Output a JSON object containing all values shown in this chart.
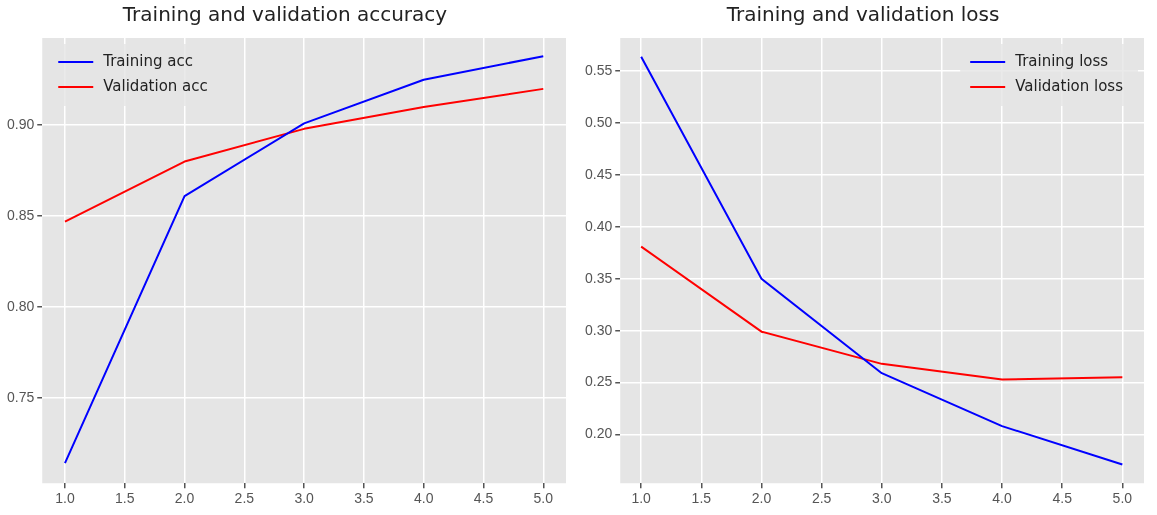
{
  "chart_data": [
    {
      "type": "line",
      "title": "Training and validation accuracy",
      "x": [
        1,
        2,
        3,
        4,
        5
      ],
      "xlim": [
        0.81,
        5.19
      ],
      "xticks": [
        {
          "value": 1,
          "label": "1.0"
        },
        {
          "value": 1.5,
          "label": "1.5"
        },
        {
          "value": 2,
          "label": "2.0"
        },
        {
          "value": 2.5,
          "label": "2.5"
        },
        {
          "value": 3,
          "label": "3.0"
        },
        {
          "value": 3.5,
          "label": "3.5"
        },
        {
          "value": 4,
          "label": "4.0"
        },
        {
          "value": 4.5,
          "label": "4.5"
        },
        {
          "value": 5,
          "label": "5.0"
        }
      ],
      "ylim": [
        0.703,
        0.948
      ],
      "yticks": [
        {
          "value": 0.75,
          "label": "0.75"
        },
        {
          "value": 0.8,
          "label": "0.80"
        },
        {
          "value": 0.85,
          "label": "0.85"
        },
        {
          "value": 0.9,
          "label": "0.90"
        }
      ],
      "grid": true,
      "legend": "top left",
      "marker": "none",
      "line_style": "solid",
      "series": [
        {
          "name": "Training acc",
          "color": "#0000ff",
          "values": [
            0.714,
            0.861,
            0.901,
            0.925,
            0.938
          ]
        },
        {
          "name": "Validation acc",
          "color": "#ff0000",
          "values": [
            0.847,
            0.88,
            0.898,
            0.91,
            0.92
          ]
        }
      ]
    },
    {
      "type": "line",
      "title": "Training and validation loss",
      "x": [
        1,
        2,
        3,
        4,
        5
      ],
      "xlim": [
        0.826,
        5.18
      ],
      "xticks": [
        {
          "value": 1,
          "label": "1.0"
        },
        {
          "value": 1.5,
          "label": "1.5"
        },
        {
          "value": 2,
          "label": "2.0"
        },
        {
          "value": 2.5,
          "label": "2.5"
        },
        {
          "value": 3,
          "label": "3.0"
        },
        {
          "value": 3.5,
          "label": "3.5"
        },
        {
          "value": 4,
          "label": "4.0"
        },
        {
          "value": 4.5,
          "label": "4.5"
        },
        {
          "value": 5,
          "label": "5.0"
        }
      ],
      "ylim": [
        0.153,
        0.582
      ],
      "yticks": [
        {
          "value": 0.2,
          "label": "0.20"
        },
        {
          "value": 0.25,
          "label": "0.25"
        },
        {
          "value": 0.3,
          "label": "0.30"
        },
        {
          "value": 0.35,
          "label": "0.35"
        },
        {
          "value": 0.4,
          "label": "0.40"
        },
        {
          "value": 0.45,
          "label": "0.45"
        },
        {
          "value": 0.5,
          "label": "0.50"
        },
        {
          "value": 0.55,
          "label": "0.55"
        }
      ],
      "grid": true,
      "legend": "top right",
      "marker": "none",
      "line_style": "solid",
      "series": [
        {
          "name": "Training loss",
          "color": "#0000ff",
          "values": [
            0.564,
            0.35,
            0.259,
            0.208,
            0.171
          ]
        },
        {
          "name": "Validation loss",
          "color": "#ff0000",
          "values": [
            0.381,
            0.299,
            0.268,
            0.253,
            0.255
          ]
        }
      ]
    }
  ]
}
